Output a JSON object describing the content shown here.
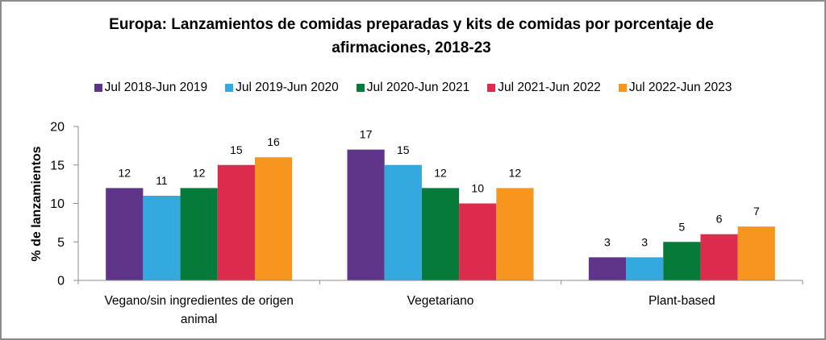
{
  "chart_data": {
    "type": "bar",
    "title": "Europa: Lanzamientos de comidas preparadas y kits de comidas por porcentaje de afirmaciones, 2018-23",
    "title_lines": [
      "Europa: Lanzamientos de comidas preparadas y kits de comidas por porcentaje de",
      "afirmaciones, 2018-23"
    ],
    "xlabel": "",
    "ylabel": "% de lanzamientos",
    "ylim": [
      0,
      20
    ],
    "yticks": [
      0,
      5,
      10,
      15,
      20
    ],
    "grid": false,
    "legend_position": "top",
    "categories": [
      "Vegano/sin ingredientes de origen animal",
      "Vegetariano",
      "Plant-based"
    ],
    "category_label_lines": [
      [
        "Vegano/sin ingredientes de origen",
        "animal"
      ],
      [
        "Vegetariano"
      ],
      [
        "Plant-based"
      ]
    ],
    "series": [
      {
        "name": "Jul 2018-Jun 2019",
        "color": "#5e3589",
        "values": [
          12,
          17,
          3
        ]
      },
      {
        "name": "Jul 2019-Jun 2020",
        "color": "#34a9df",
        "values": [
          11,
          15,
          3
        ]
      },
      {
        "name": "Jul 2020-Jun 2021",
        "color": "#067a39",
        "values": [
          12,
          12,
          5
        ]
      },
      {
        "name": "Jul 2021-Jun 2022",
        "color": "#dd2b4d",
        "values": [
          15,
          10,
          6
        ]
      },
      {
        "name": "Jul 2022-Jun 2023",
        "color": "#f7961e",
        "values": [
          16,
          12,
          7
        ]
      }
    ]
  }
}
